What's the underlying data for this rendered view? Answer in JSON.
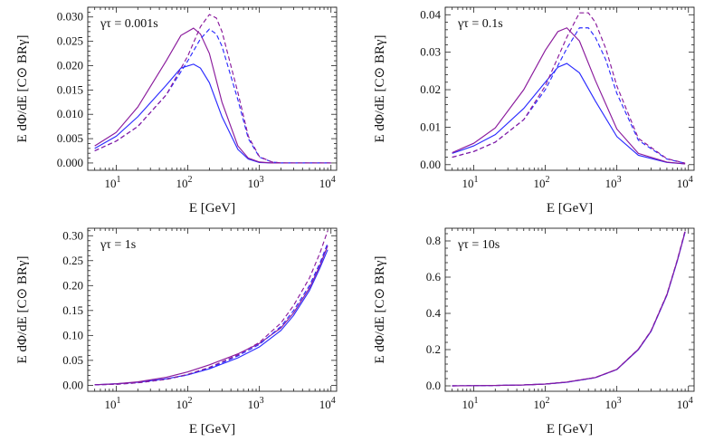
{
  "figure": {
    "panel_count": 4
  },
  "colors": {
    "blue": "#2b2bff",
    "purple": "#8a1a9c"
  },
  "chart_data": [
    {
      "type": "line",
      "annotation": "γτ = 0.001s",
      "xlabel": "E   [GeV]",
      "ylabel": "E dΦ/dE   [C⊙ BRγ]",
      "xscale": "log",
      "xlim": [
        4,
        12000
      ],
      "ylim": [
        -0.0015,
        0.032
      ],
      "xticks": [
        10,
        100,
        1000,
        10000
      ],
      "xtick_labels": [
        {
          "base": "10",
          "exp": "1"
        },
        {
          "base": "10",
          "exp": "2"
        },
        {
          "base": "10",
          "exp": "3"
        },
        {
          "base": "10",
          "exp": "4"
        }
      ],
      "yticks": [
        0,
        0.005,
        0.01,
        0.015,
        0.02,
        0.025,
        0.03
      ],
      "ytick_labels": [
        "0.000",
        "0.005",
        "0.010",
        "0.015",
        "0.020",
        "0.025",
        "0.030"
      ],
      "series": [
        {
          "color": "#2b2bff",
          "style": "solid",
          "x": [
            5,
            10,
            20,
            50,
            80,
            120,
            150,
            200,
            300,
            500,
            700,
            1000,
            1500,
            2000,
            10000
          ],
          "y": [
            0.003,
            0.0055,
            0.0095,
            0.016,
            0.0195,
            0.0203,
            0.0195,
            0.0165,
            0.0095,
            0.0028,
            0.0008,
            0.0001,
            0.0,
            0.0,
            0.0
          ]
        },
        {
          "color": "#8a1a9c",
          "style": "solid",
          "x": [
            5,
            10,
            20,
            50,
            80,
            120,
            150,
            200,
            300,
            500,
            700,
            1000,
            1500,
            2000,
            10000
          ],
          "y": [
            0.0035,
            0.0063,
            0.0115,
            0.021,
            0.0262,
            0.0277,
            0.0265,
            0.0225,
            0.0125,
            0.0035,
            0.001,
            0.0002,
            0.0,
            0.0,
            0.0
          ]
        },
        {
          "color": "#2b2bff",
          "style": "dashed",
          "x": [
            5,
            10,
            20,
            50,
            100,
            150,
            200,
            250,
            300,
            500,
            700,
            1000,
            1500,
            2000,
            10000
          ],
          "y": [
            0.0025,
            0.0045,
            0.0075,
            0.014,
            0.021,
            0.0255,
            0.0275,
            0.0265,
            0.024,
            0.013,
            0.005,
            0.0012,
            0.0002,
            0.0,
            0.0
          ]
        },
        {
          "color": "#8a1a9c",
          "style": "dashed",
          "x": [
            5,
            10,
            20,
            50,
            100,
            150,
            200,
            250,
            300,
            500,
            700,
            1000,
            1500,
            2000,
            10000
          ],
          "y": [
            0.0025,
            0.0045,
            0.0075,
            0.014,
            0.022,
            0.028,
            0.0305,
            0.0298,
            0.027,
            0.0145,
            0.0055,
            0.0013,
            0.0002,
            0.0,
            0.0
          ]
        }
      ]
    },
    {
      "type": "line",
      "annotation": "γτ = 0.1s",
      "xlabel": "E   [GeV]",
      "ylabel": "E dΦ/dE   [C⊙ BRγ]",
      "xscale": "log",
      "xlim": [
        4,
        12000
      ],
      "ylim": [
        -0.0015,
        0.042
      ],
      "xticks": [
        10,
        100,
        1000,
        10000
      ],
      "xtick_labels": [
        {
          "base": "10",
          "exp": "1"
        },
        {
          "base": "10",
          "exp": "2"
        },
        {
          "base": "10",
          "exp": "3"
        },
        {
          "base": "10",
          "exp": "4"
        }
      ],
      "yticks": [
        0,
        0.01,
        0.02,
        0.03,
        0.04
      ],
      "ytick_labels": [
        "0.00",
        "0.01",
        "0.02",
        "0.03",
        "0.04"
      ],
      "series": [
        {
          "color": "#2b2bff",
          "style": "solid",
          "x": [
            5,
            10,
            20,
            50,
            100,
            150,
            200,
            300,
            500,
            1000,
            2000,
            5000,
            9000
          ],
          "y": [
            0.003,
            0.005,
            0.008,
            0.015,
            0.022,
            0.026,
            0.027,
            0.0245,
            0.017,
            0.0075,
            0.0025,
            0.0006,
            0.0002
          ]
        },
        {
          "color": "#8a1a9c",
          "style": "solid",
          "x": [
            5,
            10,
            20,
            50,
            100,
            150,
            200,
            300,
            500,
            1000,
            2000,
            5000,
            9000
          ],
          "y": [
            0.0032,
            0.0057,
            0.0098,
            0.02,
            0.0305,
            0.0355,
            0.0365,
            0.033,
            0.0225,
            0.0095,
            0.003,
            0.0007,
            0.0002
          ]
        },
        {
          "color": "#2b2bff",
          "style": "dashed",
          "x": [
            5,
            10,
            20,
            50,
            100,
            200,
            300,
            400,
            500,
            700,
            1000,
            2000,
            5000,
            9000
          ],
          "y": [
            0.002,
            0.0035,
            0.006,
            0.012,
            0.02,
            0.031,
            0.0365,
            0.0365,
            0.034,
            0.028,
            0.019,
            0.0065,
            0.0015,
            0.0004
          ]
        },
        {
          "color": "#8a1a9c",
          "style": "dashed",
          "x": [
            5,
            10,
            20,
            50,
            100,
            200,
            300,
            400,
            500,
            700,
            1000,
            2000,
            5000,
            9000
          ],
          "y": [
            0.002,
            0.0035,
            0.006,
            0.012,
            0.021,
            0.034,
            0.0405,
            0.0405,
            0.038,
            0.031,
            0.021,
            0.007,
            0.0016,
            0.0004
          ]
        }
      ]
    },
    {
      "type": "line",
      "annotation": "γτ = 1s",
      "xlabel": "E   [GeV]",
      "ylabel": "E dΦ/dE   [C⊙ BRγ]",
      "xscale": "log",
      "xlim": [
        4,
        12000
      ],
      "ylim": [
        -0.012,
        0.315
      ],
      "xticks": [
        10,
        100,
        1000,
        10000
      ],
      "xtick_labels": [
        {
          "base": "10",
          "exp": "1"
        },
        {
          "base": "10",
          "exp": "2"
        },
        {
          "base": "10",
          "exp": "3"
        },
        {
          "base": "10",
          "exp": "4"
        }
      ],
      "yticks": [
        0,
        0.05,
        0.1,
        0.15,
        0.2,
        0.25,
        0.3
      ],
      "ytick_labels": [
        "0.00",
        "0.05",
        "0.10",
        "0.15",
        "0.20",
        "0.25",
        "0.30"
      ],
      "series": [
        {
          "color": "#2b2bff",
          "style": "solid",
          "x": [
            5,
            10,
            20,
            50,
            100,
            200,
            500,
            1000,
            2000,
            3000,
            5000,
            7000,
            9000
          ],
          "y": [
            0.001,
            0.003,
            0.006,
            0.013,
            0.021,
            0.033,
            0.055,
            0.077,
            0.11,
            0.14,
            0.19,
            0.235,
            0.272
          ]
        },
        {
          "color": "#8a1a9c",
          "style": "solid",
          "x": [
            5,
            10,
            20,
            50,
            100,
            200,
            500,
            1000,
            2000,
            3000,
            5000,
            7000,
            9000
          ],
          "y": [
            0.001,
            0.003,
            0.007,
            0.016,
            0.027,
            0.041,
            0.063,
            0.084,
            0.115,
            0.145,
            0.195,
            0.24,
            0.28
          ]
        },
        {
          "color": "#2b2bff",
          "style": "dashed",
          "x": [
            5,
            10,
            20,
            50,
            100,
            200,
            500,
            1000,
            2000,
            3000,
            5000,
            7000,
            9000
          ],
          "y": [
            0.001,
            0.002,
            0.005,
            0.012,
            0.021,
            0.034,
            0.059,
            0.082,
            0.118,
            0.15,
            0.2,
            0.245,
            0.285
          ]
        },
        {
          "color": "#8a1a9c",
          "style": "dashed",
          "x": [
            5,
            10,
            20,
            50,
            100,
            200,
            500,
            1000,
            2000,
            3000,
            5000,
            7000,
            9000
          ],
          "y": [
            0.001,
            0.002,
            0.005,
            0.012,
            0.022,
            0.036,
            0.061,
            0.086,
            0.125,
            0.16,
            0.215,
            0.265,
            0.31
          ]
        }
      ]
    },
    {
      "type": "line",
      "annotation": "γτ = 10s",
      "xlabel": "E   [GeV]",
      "ylabel": "E dΦ/dE   [C⊙ BRγ]",
      "xscale": "log",
      "xlim": [
        4,
        12000
      ],
      "ylim": [
        -0.03,
        0.87
      ],
      "xticks": [
        10,
        100,
        1000,
        10000
      ],
      "xtick_labels": [
        {
          "base": "10",
          "exp": "1"
        },
        {
          "base": "10",
          "exp": "2"
        },
        {
          "base": "10",
          "exp": "3"
        },
        {
          "base": "10",
          "exp": "4"
        }
      ],
      "yticks": [
        0,
        0.2,
        0.4,
        0.6,
        0.8
      ],
      "ytick_labels": [
        "0.0",
        "0.2",
        "0.4",
        "0.6",
        "0.8"
      ],
      "series": [
        {
          "color": "#2b2bff",
          "style": "solid",
          "x": [
            5,
            10,
            20,
            50,
            100,
            200,
            500,
            1000,
            2000,
            3000,
            5000,
            7000,
            9000
          ],
          "y": [
            0.0,
            0.001,
            0.002,
            0.005,
            0.01,
            0.02,
            0.045,
            0.09,
            0.2,
            0.3,
            0.5,
            0.69,
            0.85
          ]
        },
        {
          "color": "#8a1a9c",
          "style": "solid",
          "x": [
            5,
            10,
            20,
            50,
            100,
            200,
            500,
            1000,
            2000,
            3000,
            5000,
            7000,
            9000
          ],
          "y": [
            0.0,
            0.001,
            0.002,
            0.005,
            0.01,
            0.021,
            0.046,
            0.091,
            0.202,
            0.302,
            0.503,
            0.693,
            0.852
          ]
        },
        {
          "color": "#2b2bff",
          "style": "dashed",
          "x": [
            5,
            10,
            20,
            50,
            100,
            200,
            500,
            1000,
            2000,
            3000,
            5000,
            7000,
            9000
          ],
          "y": [
            0.0,
            0.001,
            0.002,
            0.005,
            0.01,
            0.02,
            0.045,
            0.09,
            0.201,
            0.301,
            0.502,
            0.692,
            0.853
          ]
        },
        {
          "color": "#8a1a9c",
          "style": "dashed",
          "x": [
            5,
            10,
            20,
            50,
            100,
            200,
            500,
            1000,
            2000,
            3000,
            5000,
            7000,
            9000
          ],
          "y": [
            0.0,
            0.001,
            0.002,
            0.005,
            0.01,
            0.021,
            0.046,
            0.091,
            0.203,
            0.304,
            0.505,
            0.696,
            0.858
          ]
        }
      ]
    }
  ]
}
